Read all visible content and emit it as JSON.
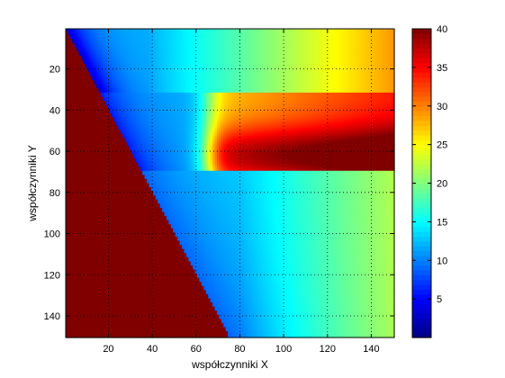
{
  "chart_data": {
    "type": "heatmap",
    "xlabel": "współczynniki X",
    "ylabel": "współczynniki Y",
    "x_ticks": [
      20,
      40,
      60,
      80,
      100,
      120,
      140
    ],
    "y_ticks": [
      20,
      40,
      60,
      80,
      100,
      120,
      140
    ],
    "xlim": [
      1,
      150
    ],
    "ylim": [
      1,
      150
    ],
    "y_axis_reversed": true,
    "grid": "dotted",
    "colormap": "jet",
    "clim": [
      0,
      40
    ],
    "colorbar_ticks": [
      5,
      10,
      15,
      20,
      25,
      30,
      35,
      40
    ],
    "regions": [
      {
        "name": "lower-left triangle",
        "boundary_x_at_y1": 1,
        "boundary_x_at_y150": 75,
        "value": 40
      },
      {
        "name": "upper band rows 1-32",
        "value_range": [
          3,
          29
        ],
        "trend": "increases with x"
      },
      {
        "name": "middle band rows 32-70",
        "value_range": [
          5,
          40
        ],
        "trend": "increases with x, peaks near row 62"
      },
      {
        "name": "lower band rows 70-150",
        "value_range": [
          8,
          22
        ],
        "trend": "increases with x"
      }
    ]
  }
}
